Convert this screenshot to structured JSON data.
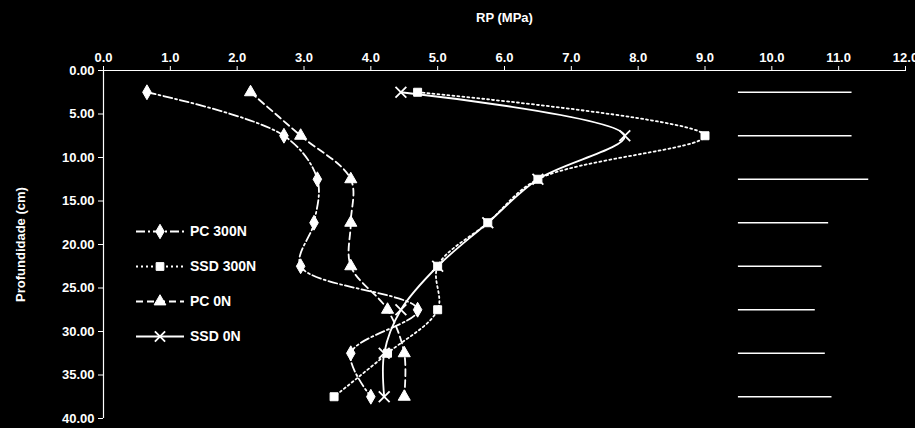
{
  "chart_data": {
    "type": "line",
    "orientation": "horizontal",
    "x_label": "RP (MPa)",
    "y_label": "Profundidade (cm)",
    "xlim": [
      0,
      12
    ],
    "xticks": [
      {
        "value": 0,
        "label": "0.0"
      },
      {
        "value": 1,
        "label": "1.0"
      },
      {
        "value": 2,
        "label": "2.0"
      },
      {
        "value": 3,
        "label": "3.0"
      },
      {
        "value": 4,
        "label": "4.0"
      },
      {
        "value": 5,
        "label": "5.0"
      },
      {
        "value": 6,
        "label": "6.0"
      },
      {
        "value": 7,
        "label": "7.0"
      },
      {
        "value": 8,
        "label": "8.0"
      },
      {
        "value": 9,
        "label": "9.0"
      },
      {
        "value": 10,
        "label": "10.0"
      },
      {
        "value": 11,
        "label": "11.0"
      },
      {
        "value": 12,
        "label": "12.0"
      }
    ],
    "ylim": [
      0,
      40
    ],
    "yticks": [
      {
        "value": 0,
        "label": "0.00"
      },
      {
        "value": 5,
        "label": "5.00"
      },
      {
        "value": 10,
        "label": "10.00"
      },
      {
        "value": 15,
        "label": "15.00"
      },
      {
        "value": 20,
        "label": "20.00"
      },
      {
        "value": 25,
        "label": "25.00"
      },
      {
        "value": 30,
        "label": "30.00"
      },
      {
        "value": 35,
        "label": "35.00"
      },
      {
        "value": 40,
        "label": "40.00"
      }
    ],
    "grid": false,
    "legend": "left",
    "y": [
      2.5,
      7.5,
      12.5,
      17.5,
      22.5,
      27.5,
      32.5,
      37.5
    ],
    "series": [
      {
        "name": "PC 300N",
        "color": "#ffffff",
        "marker": "diamond",
        "line_style": "dashdot",
        "values": [
          0.65,
          2.7,
          3.2,
          3.15,
          2.95,
          4.7,
          3.7,
          4.0
        ]
      },
      {
        "name": "SSD 300N",
        "color": "#ffffff",
        "marker": "square",
        "line_style": "dotted",
        "values": [
          4.7,
          9.0,
          6.5,
          5.75,
          5.0,
          5.0,
          4.25,
          3.45
        ]
      },
      {
        "name": "PC 0N",
        "color": "#ffffff",
        "marker": "triangle",
        "line_style": "dashed",
        "values": [
          2.2,
          2.95,
          3.7,
          3.7,
          3.7,
          4.25,
          4.5,
          4.5
        ]
      },
      {
        "name": "SSD 0N",
        "color": "#ffffff",
        "marker": "x",
        "line_style": "solid",
        "values": [
          4.45,
          7.8,
          6.5,
          5.75,
          5.0,
          4.45,
          4.2,
          4.2
        ]
      }
    ],
    "reference_bars": {
      "color": "#ffffff",
      "y": [
        2.5,
        7.5,
        12.5,
        17.5,
        22.5,
        27.5,
        32.5,
        37.5
      ],
      "x_start": [
        9.5,
        9.5,
        9.5,
        9.5,
        9.5,
        9.5,
        9.5,
        9.5
      ],
      "x_end": [
        11.2,
        11.2,
        11.45,
        10.85,
        10.75,
        10.65,
        10.8,
        10.9
      ]
    }
  }
}
